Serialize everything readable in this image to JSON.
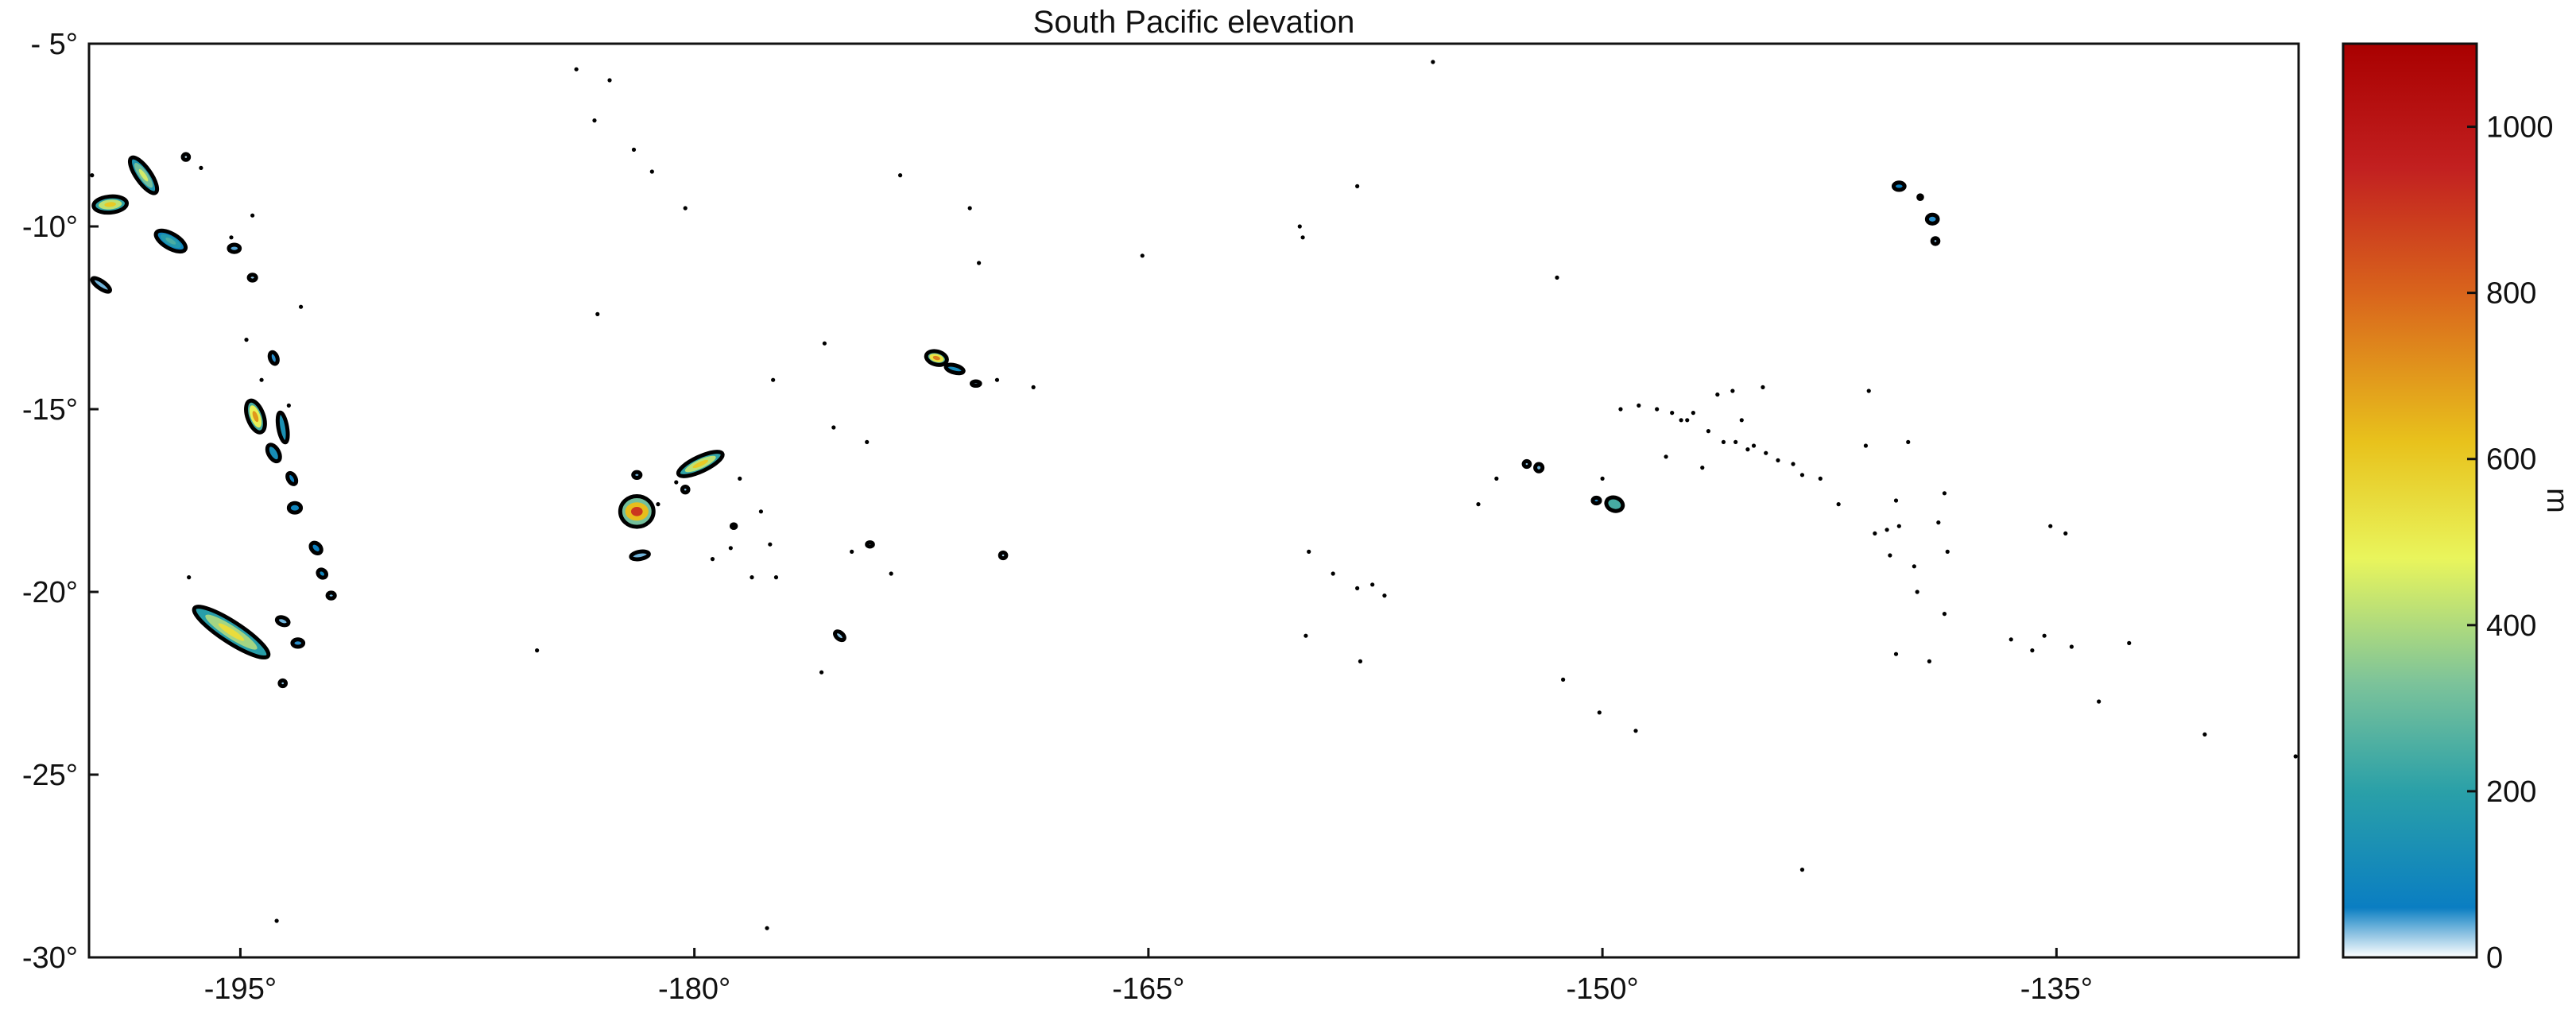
{
  "title": "South Pacific elevation",
  "map": {
    "lon_range": [
      -200,
      -127
    ],
    "lat_range": [
      -30,
      -5
    ],
    "x_ticks": [
      {
        "value": -195,
        "label": "-195°"
      },
      {
        "value": -180,
        "label": "-180°"
      },
      {
        "value": -165,
        "label": "-165°"
      },
      {
        "value": -150,
        "label": "-150°"
      },
      {
        "value": -135,
        "label": "-135°"
      }
    ],
    "y_ticks": [
      {
        "value": -5,
        "label": "- 5°"
      },
      {
        "value": -10,
        "label": "-10°"
      },
      {
        "value": -15,
        "label": "-15°"
      },
      {
        "value": -20,
        "label": "-20°"
      },
      {
        "value": -25,
        "label": "-25°"
      },
      {
        "value": -30,
        "label": "-30°"
      }
    ],
    "islands": [
      {
        "name": "",
        "lon": -199.3,
        "lat": -9.4,
        "rx": 0.55,
        "ry": 0.22,
        "tilt": -5,
        "elev": 600
      },
      {
        "name": "",
        "lon": -198.2,
        "lat": -8.6,
        "rx": 0.7,
        "ry": 0.2,
        "tilt": 55,
        "elev": 450
      },
      {
        "name": "",
        "lon": -197.3,
        "lat": -10.4,
        "rx": 0.55,
        "ry": 0.2,
        "tilt": 30,
        "elev": 250
      },
      {
        "name": "",
        "lon": -199.6,
        "lat": -11.6,
        "rx": 0.35,
        "ry": 0.1,
        "tilt": 35,
        "elev": 100
      },
      {
        "name": "",
        "lon": -196.8,
        "lat": -8.1,
        "rx": 0.1,
        "ry": 0.08,
        "tilt": 0,
        "elev": 50
      },
      {
        "name": "",
        "lon": -195.2,
        "lat": -10.6,
        "rx": 0.18,
        "ry": 0.1,
        "tilt": 0,
        "elev": 120
      },
      {
        "name": "",
        "lon": -194.6,
        "lat": -11.4,
        "rx": 0.12,
        "ry": 0.08,
        "tilt": 0,
        "elev": 80
      },
      {
        "name": "",
        "lon": -194.5,
        "lat": -15.2,
        "rx": 0.55,
        "ry": 0.22,
        "tilt": 70,
        "elev": 700
      },
      {
        "name": "",
        "lon": -193.6,
        "lat": -15.5,
        "rx": 0.5,
        "ry": 0.12,
        "tilt": 80,
        "elev": 400
      },
      {
        "name": "",
        "lon": -193.9,
        "lat": -16.2,
        "rx": 0.3,
        "ry": 0.14,
        "tilt": 60,
        "elev": 350
      },
      {
        "name": "",
        "lon": -193.9,
        "lat": -13.6,
        "rx": 0.2,
        "ry": 0.1,
        "tilt": 70,
        "elev": 150
      },
      {
        "name": "",
        "lon": -193.3,
        "lat": -16.9,
        "rx": 0.2,
        "ry": 0.1,
        "tilt": 60,
        "elev": 200
      },
      {
        "name": "",
        "lon": -193.2,
        "lat": -17.7,
        "rx": 0.2,
        "ry": 0.13,
        "tilt": 0,
        "elev": 250
      },
      {
        "name": "",
        "lon": -192.5,
        "lat": -18.8,
        "rx": 0.2,
        "ry": 0.12,
        "tilt": 45,
        "elev": 200
      },
      {
        "name": "",
        "lon": -192.3,
        "lat": -19.5,
        "rx": 0.15,
        "ry": 0.1,
        "tilt": 40,
        "elev": 250
      },
      {
        "name": "",
        "lon": -192.0,
        "lat": -20.1,
        "rx": 0.12,
        "ry": 0.08,
        "tilt": 0,
        "elev": 100
      },
      {
        "name": "",
        "lon": -195.3,
        "lat": -21.1,
        "rx": 1.45,
        "ry": 0.28,
        "tilt": 33,
        "elev": 550
      },
      {
        "name": "",
        "lon": -193.6,
        "lat": -20.8,
        "rx": 0.2,
        "ry": 0.1,
        "tilt": 20,
        "elev": 100
      },
      {
        "name": "",
        "lon": -193.1,
        "lat": -21.4,
        "rx": 0.18,
        "ry": 0.1,
        "tilt": 0,
        "elev": 150
      },
      {
        "name": "",
        "lon": -193.6,
        "lat": -22.5,
        "rx": 0.1,
        "ry": 0.08,
        "tilt": 0,
        "elev": 80
      },
      {
        "name": "",
        "lon": -181.9,
        "lat": -17.8,
        "rx": 0.55,
        "ry": 0.42,
        "tilt": 0,
        "elev": 900
      },
      {
        "name": "",
        "lon": -179.8,
        "lat": -16.5,
        "rx": 0.8,
        "ry": 0.2,
        "tilt": -25,
        "elev": 600
      },
      {
        "name": "",
        "lon": -181.9,
        "lat": -16.8,
        "rx": 0.12,
        "ry": 0.08,
        "tilt": 0,
        "elev": 100
      },
      {
        "name": "",
        "lon": -180.3,
        "lat": -17.2,
        "rx": 0.1,
        "ry": 0.08,
        "tilt": 0,
        "elev": 80
      },
      {
        "name": "",
        "lon": -181.8,
        "lat": -19.0,
        "rx": 0.3,
        "ry": 0.1,
        "tilt": -10,
        "elev": 100
      },
      {
        "name": "",
        "lon": -172.0,
        "lat": -13.6,
        "rx": 0.35,
        "ry": 0.18,
        "tilt": 15,
        "elev": 750
      },
      {
        "name": "",
        "lon": -171.4,
        "lat": -13.9,
        "rx": 0.3,
        "ry": 0.1,
        "tilt": 15,
        "elev": 300
      },
      {
        "name": "",
        "lon": -170.7,
        "lat": -14.3,
        "rx": 0.14,
        "ry": 0.06,
        "tilt": 0,
        "elev": 80
      },
      {
        "name": "",
        "lon": -149.6,
        "lat": -17.6,
        "rx": 0.28,
        "ry": 0.18,
        "tilt": 20,
        "elev": 700
      },
      {
        "name": "",
        "lon": -150.2,
        "lat": -17.5,
        "rx": 0.12,
        "ry": 0.08,
        "tilt": 0,
        "elev": 150
      },
      {
        "name": "",
        "lon": -152.1,
        "lat": -16.6,
        "rx": 0.12,
        "ry": 0.1,
        "tilt": 0,
        "elev": 100
      },
      {
        "name": "",
        "lon": -152.5,
        "lat": -16.5,
        "rx": 0.1,
        "ry": 0.08,
        "tilt": 0,
        "elev": 80
      },
      {
        "name": "",
        "lon": -140.2,
        "lat": -8.9,
        "rx": 0.18,
        "ry": 0.1,
        "tilt": 0,
        "elev": 200
      },
      {
        "name": "",
        "lon": -139.1,
        "lat": -9.8,
        "rx": 0.18,
        "ry": 0.12,
        "tilt": 0,
        "elev": 150
      },
      {
        "name": "",
        "lon": -139.0,
        "lat": -10.4,
        "rx": 0.1,
        "ry": 0.08,
        "tilt": 0,
        "elev": 80
      },
      {
        "name": "",
        "lon": -139.5,
        "lat": -9.2,
        "rx": 0.06,
        "ry": 0.05,
        "tilt": 0,
        "elev": 60
      },
      {
        "name": "",
        "lon": -178.7,
        "lat": -18.2,
        "rx": 0.07,
        "ry": 0.05,
        "tilt": 0,
        "elev": 50
      },
      {
        "name": "",
        "lon": -175.2,
        "lat": -21.2,
        "rx": 0.18,
        "ry": 0.09,
        "tilt": 40,
        "elev": 80
      },
      {
        "name": "",
        "lon": -174.2,
        "lat": -18.7,
        "rx": 0.1,
        "ry": 0.06,
        "tilt": 0,
        "elev": 60
      },
      {
        "name": "",
        "lon": -169.8,
        "lat": -19.0,
        "rx": 0.1,
        "ry": 0.08,
        "tilt": 0,
        "elev": 60
      }
    ],
    "dots": [
      [
        -199.9,
        -8.6
      ],
      [
        -196.3,
        -8.4
      ],
      [
        -194.6,
        -9.7
      ],
      [
        -195.3,
        -10.3
      ],
      [
        -193.0,
        -12.2
      ],
      [
        -194.8,
        -13.1
      ],
      [
        -194.3,
        -14.2
      ],
      [
        -193.4,
        -14.9
      ],
      [
        -196.7,
        -19.6
      ],
      [
        -193.8,
        -29.0
      ],
      [
        -185.2,
        -21.6
      ],
      [
        -183.2,
        -12.4
      ],
      [
        -183.9,
        -5.7
      ],
      [
        -182.8,
        -6.0
      ],
      [
        -182.0,
        -7.9
      ],
      [
        -181.4,
        -8.5
      ],
      [
        -180.3,
        -9.5
      ],
      [
        -183.3,
        -7.1
      ],
      [
        -178.5,
        -16.9
      ],
      [
        -177.8,
        -17.8
      ],
      [
        -178.1,
        -19.6
      ],
      [
        -178.8,
        -18.8
      ],
      [
        -177.5,
        -18.7
      ],
      [
        -177.3,
        -19.6
      ],
      [
        -180.6,
        -17.0
      ],
      [
        -181.2,
        -17.6
      ],
      [
        -179.4,
        -19.1
      ],
      [
        -177.4,
        -14.2
      ],
      [
        -175.7,
        -13.2
      ],
      [
        -175.4,
        -15.5
      ],
      [
        -174.3,
        -15.9
      ],
      [
        -174.8,
        -18.9
      ],
      [
        -173.5,
        -19.5
      ],
      [
        -175.8,
        -22.2
      ],
      [
        -177.6,
        -29.2
      ],
      [
        -173.2,
        -8.6
      ],
      [
        -170.9,
        -9.5
      ],
      [
        -170.6,
        -11.0
      ],
      [
        -170.0,
        -14.2
      ],
      [
        -168.8,
        -14.4
      ],
      [
        -165.2,
        -10.8
      ],
      [
        -160.0,
        -10.0
      ],
      [
        -159.9,
        -10.3
      ],
      [
        -158.1,
        -8.9
      ],
      [
        -155.6,
        -5.5
      ],
      [
        -159.7,
        -18.9
      ],
      [
        -158.9,
        -19.5
      ],
      [
        -158.1,
        -19.9
      ],
      [
        -157.6,
        -19.8
      ],
      [
        -157.2,
        -20.1
      ],
      [
        -159.8,
        -21.2
      ],
      [
        -158.0,
        -21.9
      ],
      [
        -154.1,
        -17.6
      ],
      [
        -153.5,
        -16.9
      ],
      [
        -151.5,
        -11.4
      ],
      [
        -150.0,
        -16.9
      ],
      [
        -151.3,
        -22.4
      ],
      [
        -150.1,
        -23.3
      ],
      [
        -148.9,
        -23.8
      ],
      [
        -143.4,
        -27.6
      ],
      [
        -148.2,
        -15.0
      ],
      [
        -147.7,
        -15.1
      ],
      [
        -147.4,
        -15.3
      ],
      [
        -147.0,
        -15.1
      ],
      [
        -146.5,
        -15.6
      ],
      [
        -146.2,
        -14.6
      ],
      [
        -145.7,
        -14.5
      ],
      [
        -145.4,
        -15.3
      ],
      [
        -144.7,
        -14.4
      ],
      [
        -145.0,
        -16.0
      ],
      [
        -145.6,
        -15.9
      ],
      [
        -144.6,
        -16.2
      ],
      [
        -144.2,
        -16.4
      ],
      [
        -143.7,
        -16.5
      ],
      [
        -143.4,
        -16.8
      ],
      [
        -142.8,
        -16.9
      ],
      [
        -142.2,
        -17.6
      ],
      [
        -141.3,
        -16.0
      ],
      [
        -141.2,
        -14.5
      ],
      [
        -141.0,
        -18.4
      ],
      [
        -140.6,
        -18.3
      ],
      [
        -140.3,
        -17.5
      ],
      [
        -140.2,
        -18.2
      ],
      [
        -140.5,
        -19.0
      ],
      [
        -139.7,
        -19.3
      ],
      [
        -138.7,
        -17.3
      ],
      [
        -138.9,
        -18.1
      ],
      [
        -138.6,
        -18.9
      ],
      [
        -139.9,
        -15.9
      ],
      [
        -139.6,
        -20.0
      ],
      [
        -140.3,
        -21.7
      ],
      [
        -138.7,
        -20.6
      ],
      [
        -139.2,
        -21.9
      ],
      [
        -136.5,
        -21.3
      ],
      [
        -135.8,
        -21.6
      ],
      [
        -135.2,
        -18.2
      ],
      [
        -134.7,
        -18.4
      ],
      [
        -135.4,
        -21.2
      ],
      [
        -134.5,
        -21.5
      ],
      [
        -133.6,
        -23.0
      ],
      [
        -132.6,
        -21.4
      ],
      [
        -130.1,
        -23.9
      ],
      [
        -127.1,
        -24.5
      ],
      [
        -147.9,
        -16.3
      ],
      [
        -149.4,
        -15.0
      ],
      [
        -148.8,
        -14.9
      ],
      [
        -147.2,
        -15.3
      ],
      [
        -146.0,
        -15.9
      ],
      [
        -145.2,
        -16.1
      ],
      [
        -146.7,
        -16.6
      ]
    ]
  },
  "colorbar": {
    "label": "m",
    "min": 0,
    "max": 1100,
    "ticks": [
      {
        "value": 0,
        "label": "0"
      },
      {
        "value": 200,
        "label": "200"
      },
      {
        "value": 400,
        "label": "400"
      },
      {
        "value": 600,
        "label": "600"
      },
      {
        "value": 800,
        "label": "800"
      },
      {
        "value": 1000,
        "label": "1000"
      }
    ],
    "stops": [
      {
        "value": 0,
        "color": "#ffffff"
      },
      {
        "value": 60,
        "color": "#0a7ec2"
      },
      {
        "value": 200,
        "color": "#2aa0a8"
      },
      {
        "value": 330,
        "color": "#7cc39a"
      },
      {
        "value": 480,
        "color": "#e9f55c"
      },
      {
        "value": 620,
        "color": "#e8c21c"
      },
      {
        "value": 800,
        "color": "#d9641c"
      },
      {
        "value": 950,
        "color": "#c22020"
      },
      {
        "value": 1100,
        "color": "#a90000"
      }
    ]
  }
}
